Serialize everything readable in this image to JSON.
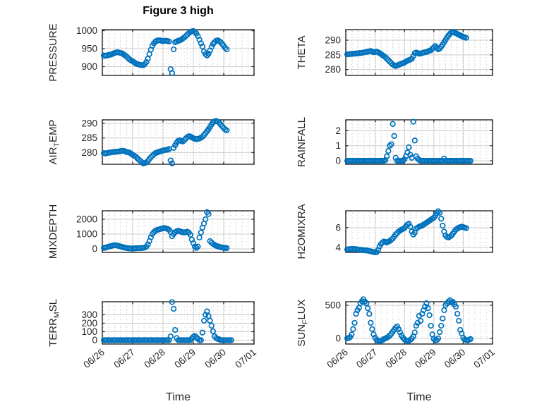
{
  "figure": {
    "title": "Figure 3 high",
    "marker_color": "#0072BD",
    "axis_color": "#262626",
    "major_grid_color": "#cccccc",
    "minor_grid_color": "#c2c2c2",
    "background": "#ffffff"
  },
  "chart_data": {
    "type": "scatter",
    "marker": "open-circle",
    "xlabel": "Time",
    "x_unit": "days since 06/26 00:00",
    "x_start": 0.05,
    "x_step": 0.05,
    "xlim": [
      0,
      5
    ],
    "xticks": [
      0,
      1,
      2,
      3,
      4,
      5
    ],
    "xtick_labels": [
      "06/26",
      "06/27",
      "06/28",
      "06/29",
      "06/30",
      "07/01"
    ],
    "grid": "major-solid minor-dotted",
    "legend": "none",
    "subplots": [
      {
        "id": "pressure",
        "row": 0,
        "col": 0,
        "ylabel_parts": [
          {
            "t": "PRESSURE"
          }
        ],
        "yticks": [
          900,
          950,
          1000
        ],
        "ytick_labels": [
          "900",
          "950",
          "1000"
        ],
        "ylim": [
          875.5,
          1003
        ],
        "minor_div": 5,
        "y": [
          931,
          930,
          931,
          932,
          933,
          934,
          936,
          938,
          939,
          940,
          939,
          938,
          937,
          934,
          931,
          928,
          924,
          920,
          917,
          915,
          912,
          909,
          907,
          906,
          905,
          904,
          904,
          907,
          913,
          922,
          935,
          947,
          958,
          965,
          970,
          972,
          973,
          973,
          972,
          971,
          972,
          972,
          971,
          970,
          893,
          882,
          948,
          968,
          970,
          972,
          973,
          975,
          978,
          981,
          985,
          989,
          993,
          996,
          998,
          999,
          997,
          992,
          985,
          975,
          965,
          956,
          942,
          935,
          931,
          936,
          945,
          955,
          963,
          968,
          972,
          973,
          971,
          968,
          963,
          958,
          952,
          948,
          null,
          null,
          null
        ]
      },
      {
        "id": "theta",
        "row": 0,
        "col": 1,
        "ylabel_parts": [
          {
            "t": "THETA"
          }
        ],
        "yticks": [
          280,
          285,
          290
        ],
        "ytick_labels": [
          "280",
          "285",
          "290"
        ],
        "ylim": [
          278,
          293.6
        ],
        "minor_div": 5,
        "y": [
          285.2,
          285.2,
          285.3,
          285.3,
          285.4,
          285.4,
          285.5,
          285.5,
          285.6,
          285.6,
          285.7,
          285.8,
          285.9,
          286.0,
          286.1,
          286.2,
          286.3,
          286.1,
          285.9,
          286.0,
          286.1,
          285.9,
          285.6,
          285.3,
          284.9,
          284.6,
          284.2,
          283.7,
          283.2,
          282.7,
          282.2,
          281.7,
          281.4,
          281.2,
          281.4,
          281.6,
          281.8,
          282.0,
          282.2,
          282.4,
          282.7,
          283.0,
          283.2,
          283.4,
          283.7,
          284.6,
          285.6,
          285.8,
          285.6,
          285.4,
          285.5,
          285.6,
          285.8,
          285.9,
          286.0,
          286.2,
          286.4,
          286.6,
          287.1,
          287.6,
          288.0,
          287.4,
          286.9,
          287.2,
          287.8,
          288.5,
          289.3,
          290.1,
          290.9,
          291.6,
          292.2,
          292.6,
          292.8,
          292.6,
          292.4,
          292.1,
          291.9,
          291.6,
          291.4,
          291.1,
          291.0,
          290.8,
          null,
          null,
          null
        ]
      },
      {
        "id": "air_temp",
        "row": 1,
        "col": 0,
        "ylabel_parts": [
          {
            "t": "AIR"
          },
          {
            "t": "T",
            "sub": true
          },
          {
            "t": "EMP"
          }
        ],
        "yticks": [
          280,
          285,
          290
        ],
        "ytick_labels": [
          "280",
          "285",
          "290"
        ],
        "ylim": [
          276,
          291.2
        ],
        "minor_div": 5,
        "y": [
          279.8,
          279.7,
          279.8,
          279.9,
          280.0,
          280.1,
          280.2,
          280.2,
          280.3,
          280.3,
          280.4,
          280.5,
          280.6,
          280.6,
          280.4,
          280.2,
          280.1,
          280.0,
          279.6,
          279.2,
          278.9,
          278.6,
          278.1,
          277.6,
          277.2,
          276.7,
          276.3,
          276.4,
          276.6,
          277.1,
          277.8,
          278.4,
          278.9,
          279.4,
          279.8,
          280.0,
          280.2,
          280.4,
          280.5,
          280.7,
          280.8,
          280.9,
          281.0,
          281.2,
          277.3,
          276.3,
          281.6,
          282.5,
          283.4,
          284.0,
          284.2,
          284.0,
          283.8,
          284.2,
          284.8,
          285.3,
          285.6,
          285.5,
          285.2,
          284.9,
          284.7,
          284.6,
          284.7,
          284.8,
          285.1,
          285.4,
          286.0,
          286.6,
          287.3,
          288.0,
          288.8,
          289.6,
          290.3,
          290.7,
          290.8,
          290.6,
          290.2,
          289.6,
          289.0,
          288.4,
          287.9,
          287.6,
          null,
          null,
          null
        ]
      },
      {
        "id": "rainfall",
        "row": 1,
        "col": 1,
        "ylabel_parts": [
          {
            "t": "RAINFALL"
          }
        ],
        "yticks": [
          0,
          1,
          2
        ],
        "ytick_labels": [
          "0",
          "1",
          "2"
        ],
        "ylim": [
          -0.23,
          2.72
        ],
        "minor_div": 5,
        "y": [
          0,
          0,
          0,
          0,
          0,
          0,
          0,
          0,
          0,
          0,
          0,
          0,
          0,
          0,
          0,
          0,
          0,
          0,
          0,
          0,
          0,
          0,
          0,
          0,
          0,
          0,
          0.05,
          0.3,
          0.65,
          1.0,
          1.1,
          2.45,
          1.65,
          0.2,
          0,
          0,
          0,
          0,
          0,
          0.1,
          0.3,
          0.55,
          0.9,
          0.4,
          0.2,
          2.6,
          1.35,
          0.3,
          0.15,
          0.05,
          0,
          0,
          0,
          0,
          0,
          0,
          0,
          0,
          0,
          0,
          0,
          0,
          0,
          0,
          0,
          0,
          0.15,
          0,
          0,
          0,
          0,
          0,
          0,
          0,
          0,
          0,
          0,
          0,
          0,
          0,
          0,
          0,
          0,
          0,
          0
        ]
      },
      {
        "id": "mixdepth",
        "row": 2,
        "col": 0,
        "ylabel_parts": [
          {
            "t": "MIXDEPTH"
          }
        ],
        "yticks": [
          0,
          1000,
          2000
        ],
        "ytick_labels": [
          "0",
          "1000",
          "2000"
        ],
        "ylim": [
          -240,
          2570
        ],
        "minor_div": 4,
        "y": [
          60,
          80,
          110,
          140,
          170,
          200,
          225,
          240,
          235,
          215,
          190,
          160,
          130,
          100,
          75,
          55,
          40,
          30,
          25,
          25,
          30,
          35,
          40,
          45,
          50,
          55,
          65,
          90,
          150,
          300,
          520,
          780,
          1000,
          1130,
          1220,
          1270,
          1300,
          1330,
          1360,
          1390,
          1410,
          1380,
          1340,
          1290,
          1130,
          850,
          1000,
          1120,
          1180,
          1220,
          1190,
          1150,
          1120,
          1100,
          1130,
          1160,
          1100,
          950,
          620,
          380,
          150,
          60,
          150,
          760,
          1100,
          1430,
          1710,
          2000,
          2480,
          2350,
          520,
          420,
          330,
          260,
          210,
          170,
          140,
          110,
          90,
          75,
          60,
          50,
          null,
          null,
          null
        ]
      },
      {
        "id": "h2omixra",
        "row": 2,
        "col": 1,
        "ylabel_parts": [
          {
            "t": "H2OMIXRA"
          }
        ],
        "yticks": [
          4,
          6
        ],
        "ytick_labels": [
          "4",
          "6"
        ],
        "ylim": [
          3.5,
          7.7
        ],
        "minor_div": 4,
        "y": [
          3.8,
          3.82,
          3.83,
          3.85,
          3.85,
          3.84,
          3.82,
          3.8,
          3.78,
          3.76,
          3.74,
          3.72,
          3.71,
          3.7,
          3.67,
          3.64,
          3.61,
          3.58,
          3.54,
          3.5,
          3.52,
          3.75,
          4.1,
          4.35,
          4.5,
          4.6,
          4.55,
          4.5,
          4.58,
          4.65,
          4.78,
          4.9,
          5.1,
          5.3,
          5.45,
          5.6,
          5.7,
          5.8,
          5.88,
          5.95,
          6.15,
          6.3,
          6.4,
          6.1,
          5.6,
          5.3,
          5.5,
          5.9,
          6.0,
          6.1,
          6.15,
          6.2,
          6.3,
          6.4,
          6.5,
          6.6,
          6.7,
          6.8,
          6.9,
          7.0,
          7.2,
          7.45,
          7.65,
          7.5,
          6.9,
          6.2,
          5.6,
          5.2,
          5.05,
          5.0,
          5.1,
          5.2,
          5.4,
          5.6,
          5.8,
          5.9,
          6.0,
          6.05,
          6.1,
          6.05,
          6.0,
          5.95,
          null,
          null,
          null
        ]
      },
      {
        "id": "terr_msl",
        "row": 3,
        "col": 0,
        "ylabel_parts": [
          {
            "t": "TERR"
          },
          {
            "t": "M",
            "sub": true
          },
          {
            "t": "SL"
          }
        ],
        "yticks": [
          0,
          100,
          200,
          300
        ],
        "ytick_labels": [
          "0",
          "100",
          "200",
          "300"
        ],
        "ylim": [
          -46,
          454
        ],
        "minor_div": 2,
        "y": [
          0,
          0,
          0,
          0,
          0,
          0,
          0,
          0,
          0,
          0,
          0,
          0,
          0,
          0,
          0,
          0,
          0,
          0,
          0,
          0,
          0,
          0,
          0,
          0,
          0,
          0,
          0,
          0,
          0,
          0,
          0,
          0,
          0,
          0,
          0,
          0,
          0,
          0,
          0,
          0,
          0,
          0,
          0,
          0,
          45,
          450,
          370,
          120,
          25,
          0,
          0,
          0,
          0,
          0,
          0,
          0,
          0,
          0,
          20,
          40,
          50,
          35,
          15,
          0,
          0,
          90,
          230,
          300,
          340,
          285,
          230,
          170,
          105,
          45,
          25,
          15,
          10,
          0,
          0,
          0,
          0,
          0,
          0,
          0,
          0
        ]
      },
      {
        "id": "sun_flux",
        "row": 3,
        "col": 1,
        "ylabel_parts": [
          {
            "t": "SUN"
          },
          {
            "t": "F",
            "sub": true
          },
          {
            "t": "LUX"
          }
        ],
        "yticks": [
          0,
          500
        ],
        "ytick_labels": [
          "0",
          "500"
        ],
        "ylim": [
          -85,
          553
        ],
        "minor_div": 5,
        "y": [
          0,
          5,
          20,
          60,
          140,
          235,
          370,
          425,
          460,
          532,
          560,
          590,
          555,
          530,
          455,
          370,
          235,
          140,
          60,
          10,
          -20,
          -35,
          -40,
          -35,
          -25,
          -10,
          0,
          10,
          25,
          45,
          70,
          100,
          130,
          160,
          180,
          140,
          90,
          45,
          10,
          -15,
          -30,
          -40,
          -35,
          -20,
          0,
          30,
          90,
          190,
          235,
          340,
          265,
          370,
          425,
          480,
          530,
          455,
          350,
          190,
          60,
          -10,
          -30,
          -25,
          0,
          95,
          190,
          300,
          425,
          500,
          530,
          555,
          575,
          545,
          550,
          510,
          478,
          372,
          266,
          128,
          74,
          10,
          -15,
          -25,
          -30,
          -20,
          -10
        ]
      }
    ]
  }
}
